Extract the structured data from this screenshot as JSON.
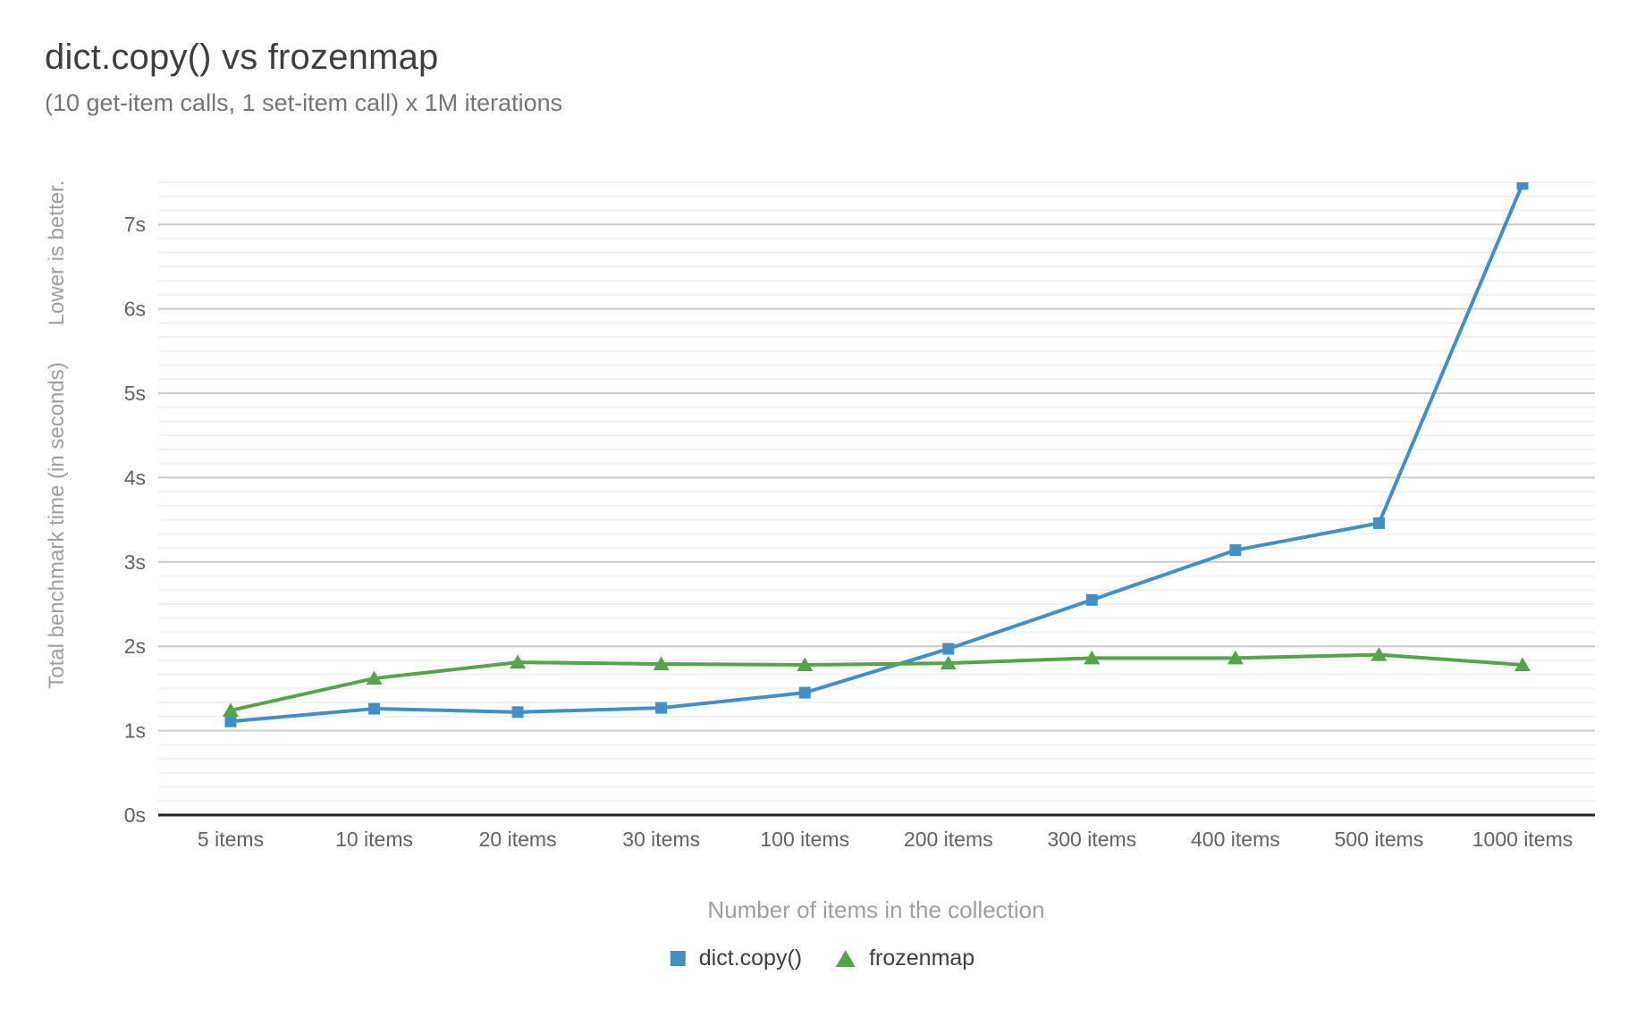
{
  "page": {
    "background": "#ffffff"
  },
  "chart_data": {
    "type": "line",
    "title": "dict.copy() vs frozenmap",
    "subtitle": "(10 get-item calls, 1 set-item call) x 1M iterations",
    "categories": [
      "5 items",
      "10 items",
      "20 items",
      "30 items",
      "100 items",
      "200 items",
      "300 items",
      "400 items",
      "500 items",
      "1000 items"
    ],
    "series": [
      {
        "name": "dict.copy()",
        "marker": "square",
        "color": "#418fc7",
        "values": [
          1.11,
          1.26,
          1.22,
          1.27,
          1.45,
          1.97,
          2.55,
          3.14,
          3.46,
          7.48
        ]
      },
      {
        "name": "frozenmap",
        "marker": "triangle",
        "color": "#55a34a",
        "values": [
          1.24,
          1.62,
          1.81,
          1.79,
          1.78,
          1.8,
          1.86,
          1.86,
          1.9,
          1.78
        ]
      }
    ],
    "xlabel": "Number of items in the collection",
    "ylabel": "Total benchmark time (in seconds)",
    "ylabel_note": "Lower is better.",
    "yticks": [
      "0s",
      "1s",
      "2s",
      "3s",
      "4s",
      "5s",
      "6s",
      "7s"
    ],
    "ylim": [
      0,
      7.5
    ],
    "grid": {
      "major_step_seconds": 1,
      "minor_divisions_per_major": 6,
      "major_color": "#cccccc",
      "minor_color": "#f1f1f1",
      "axis_color": "#212121"
    },
    "legend_position": "bottom-center",
    "tick_label_color": "#5f6368",
    "axis_title_color": "#9aa0a6"
  }
}
